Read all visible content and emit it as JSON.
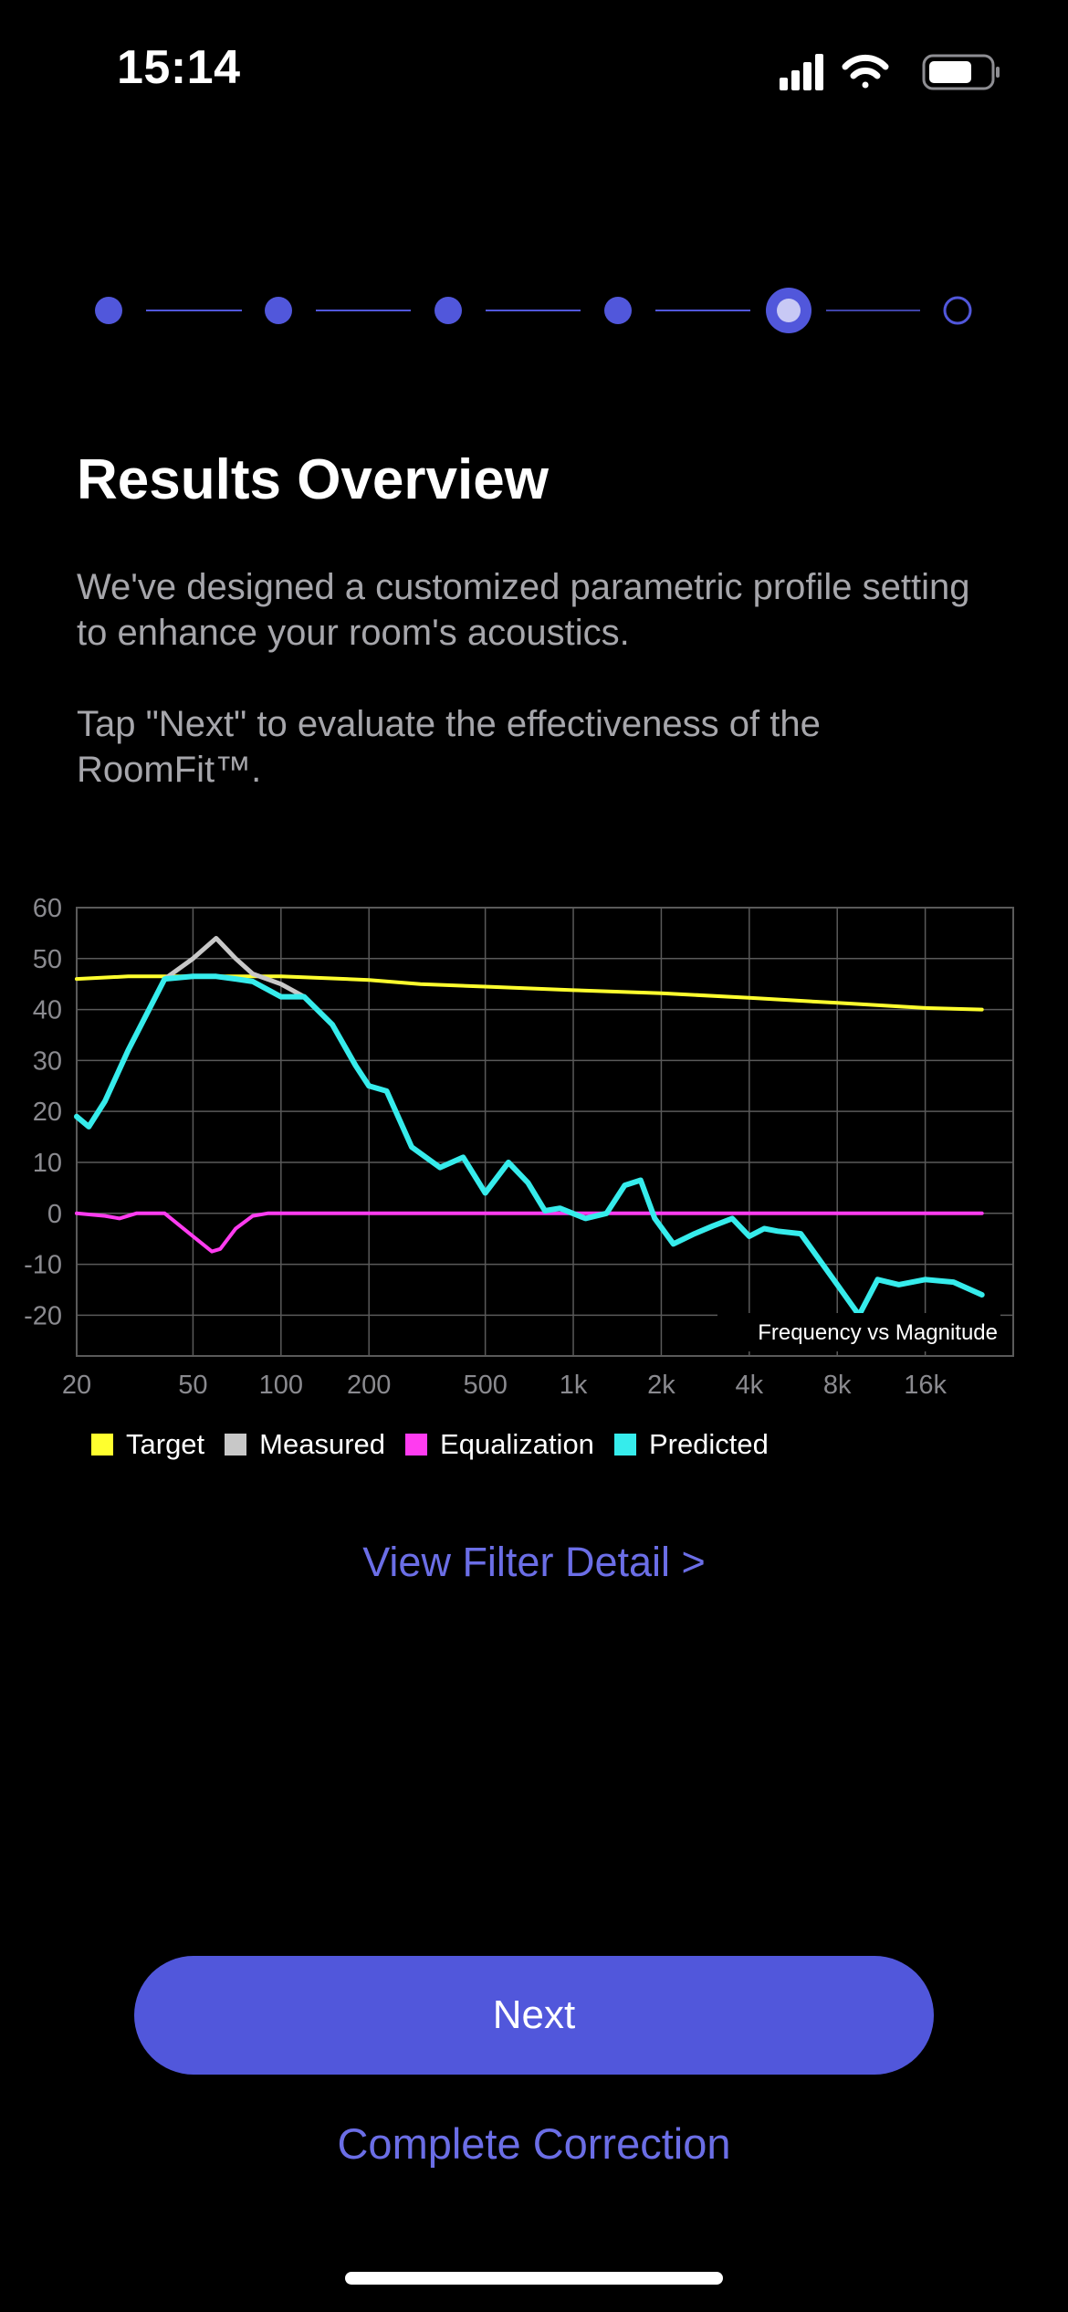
{
  "status_bar": {
    "time": "15:14",
    "icons": [
      "cellular-signal-icon",
      "wifi-icon",
      "battery-icon"
    ]
  },
  "stepper": {
    "total_steps": 6,
    "current_step": 5,
    "color_active": "#5157db",
    "color_current_fill": "#c8c9f5"
  },
  "header": {
    "title": "Results Overview",
    "description_1": "We've designed a customized parametric profile setting to enhance your room's acoustics.",
    "description_2": "Tap \"Next\" to evaluate the effectiveness of the RoomFit™."
  },
  "chart_data": {
    "type": "line",
    "annotation": "Frequency vs Magnitude",
    "x_scale": "log",
    "xlim": [
      20,
      32000
    ],
    "ylim": [
      -28,
      60
    ],
    "x_ticks": [
      {
        "label": "20",
        "value": 20
      },
      {
        "label": "50",
        "value": 50
      },
      {
        "label": "100",
        "value": 100
      },
      {
        "label": "200",
        "value": 200
      },
      {
        "label": "500",
        "value": 500
      },
      {
        "label": "1k",
        "value": 1000
      },
      {
        "label": "2k",
        "value": 2000
      },
      {
        "label": "4k",
        "value": 4000
      },
      {
        "label": "8k",
        "value": 8000
      },
      {
        "label": "16k",
        "value": 16000
      }
    ],
    "y_ticks": [
      60,
      50,
      40,
      30,
      20,
      10,
      0,
      -10,
      -20
    ],
    "grid": true,
    "legend_position": "bottom-left",
    "series": [
      {
        "name": "Target",
        "color": "#ffff2e",
        "points": [
          [
            20,
            46
          ],
          [
            30,
            46.5
          ],
          [
            50,
            46.5
          ],
          [
            100,
            46.5
          ],
          [
            200,
            45.8
          ],
          [
            300,
            45
          ],
          [
            500,
            44.5
          ],
          [
            1000,
            43.8
          ],
          [
            2000,
            43.2
          ],
          [
            4000,
            42.3
          ],
          [
            8000,
            41.3
          ],
          [
            16000,
            40.3
          ],
          [
            25000,
            40
          ]
        ]
      },
      {
        "name": "Measured",
        "color": "#c8c8c8",
        "points": [
          [
            20,
            19
          ],
          [
            22,
            17
          ],
          [
            25,
            22
          ],
          [
            30,
            32
          ],
          [
            40,
            46
          ],
          [
            50,
            50
          ],
          [
            60,
            54
          ],
          [
            70,
            50
          ],
          [
            80,
            47
          ],
          [
            100,
            45
          ],
          [
            120,
            42.5
          ],
          [
            150,
            37
          ],
          [
            180,
            29
          ],
          [
            200,
            25
          ],
          [
            230,
            24
          ],
          [
            280,
            13
          ],
          [
            350,
            9
          ],
          [
            420,
            11
          ],
          [
            500,
            4
          ],
          [
            600,
            10
          ],
          [
            700,
            6
          ],
          [
            800,
            0.5
          ],
          [
            900,
            1
          ],
          [
            1100,
            -1
          ],
          [
            1300,
            0
          ],
          [
            1500,
            5.5
          ],
          [
            1700,
            6.5
          ],
          [
            1900,
            -1
          ],
          [
            2200,
            -6
          ],
          [
            2600,
            -4
          ],
          [
            3000,
            -2.5
          ],
          [
            3500,
            -1
          ],
          [
            4000,
            -4.5
          ],
          [
            4500,
            -3
          ],
          [
            5000,
            -3.5
          ],
          [
            6000,
            -4
          ],
          [
            8000,
            -14
          ],
          [
            9500,
            -20
          ],
          [
            11000,
            -13
          ],
          [
            13000,
            -14
          ],
          [
            16000,
            -13
          ],
          [
            20000,
            -13.5
          ],
          [
            25000,
            -16
          ]
        ]
      },
      {
        "name": "Equalization",
        "color": "#ff3cf0",
        "points": [
          [
            20,
            0
          ],
          [
            25,
            -0.5
          ],
          [
            28,
            -1
          ],
          [
            32,
            0
          ],
          [
            40,
            0
          ],
          [
            50,
            -4.5
          ],
          [
            58,
            -7.5
          ],
          [
            62,
            -7
          ],
          [
            70,
            -3
          ],
          [
            80,
            -0.5
          ],
          [
            90,
            0
          ],
          [
            100,
            0
          ],
          [
            200,
            0
          ],
          [
            500,
            0
          ],
          [
            1000,
            0
          ],
          [
            2000,
            0
          ],
          [
            4000,
            0
          ],
          [
            8000,
            0
          ],
          [
            16000,
            0
          ],
          [
            25000,
            0
          ]
        ]
      },
      {
        "name": "Predicted",
        "color": "#36ecec",
        "points": [
          [
            20,
            19
          ],
          [
            22,
            17
          ],
          [
            25,
            22
          ],
          [
            30,
            32
          ],
          [
            40,
            46
          ],
          [
            50,
            46.5
          ],
          [
            60,
            46.5
          ],
          [
            70,
            46
          ],
          [
            80,
            45.5
          ],
          [
            100,
            42.5
          ],
          [
            120,
            42.5
          ],
          [
            150,
            37
          ],
          [
            180,
            29
          ],
          [
            200,
            25
          ],
          [
            230,
            24
          ],
          [
            280,
            13
          ],
          [
            350,
            9
          ],
          [
            420,
            11
          ],
          [
            500,
            4
          ],
          [
            600,
            10
          ],
          [
            700,
            6
          ],
          [
            800,
            0.5
          ],
          [
            900,
            1
          ],
          [
            1100,
            -1
          ],
          [
            1300,
            0
          ],
          [
            1500,
            5.5
          ],
          [
            1700,
            6.5
          ],
          [
            1900,
            -1
          ],
          [
            2200,
            -6
          ],
          [
            2600,
            -4
          ],
          [
            3000,
            -2.5
          ],
          [
            3500,
            -1
          ],
          [
            4000,
            -4.5
          ],
          [
            4500,
            -3
          ],
          [
            5000,
            -3.5
          ],
          [
            6000,
            -4
          ],
          [
            8000,
            -14
          ],
          [
            9500,
            -20
          ],
          [
            11000,
            -13
          ],
          [
            13000,
            -14
          ],
          [
            16000,
            -13
          ],
          [
            20000,
            -13.5
          ],
          [
            25000,
            -16
          ]
        ]
      }
    ]
  },
  "legend": {
    "items": [
      {
        "label": "Target",
        "color": "#ffff2e"
      },
      {
        "label": "Measured",
        "color": "#c8c8c8"
      },
      {
        "label": "Equalization",
        "color": "#ff3cf0"
      },
      {
        "label": "Predicted",
        "color": "#36ecec"
      }
    ]
  },
  "links": {
    "view_filter_detail": "View Filter Detail >",
    "complete_correction": "Complete Correction"
  },
  "buttons": {
    "next": "Next"
  },
  "colors": {
    "accent": "#5157db",
    "link": "#6b6ee6",
    "grid": "#5a5a5a",
    "axis_text": "#8a8a8f"
  }
}
